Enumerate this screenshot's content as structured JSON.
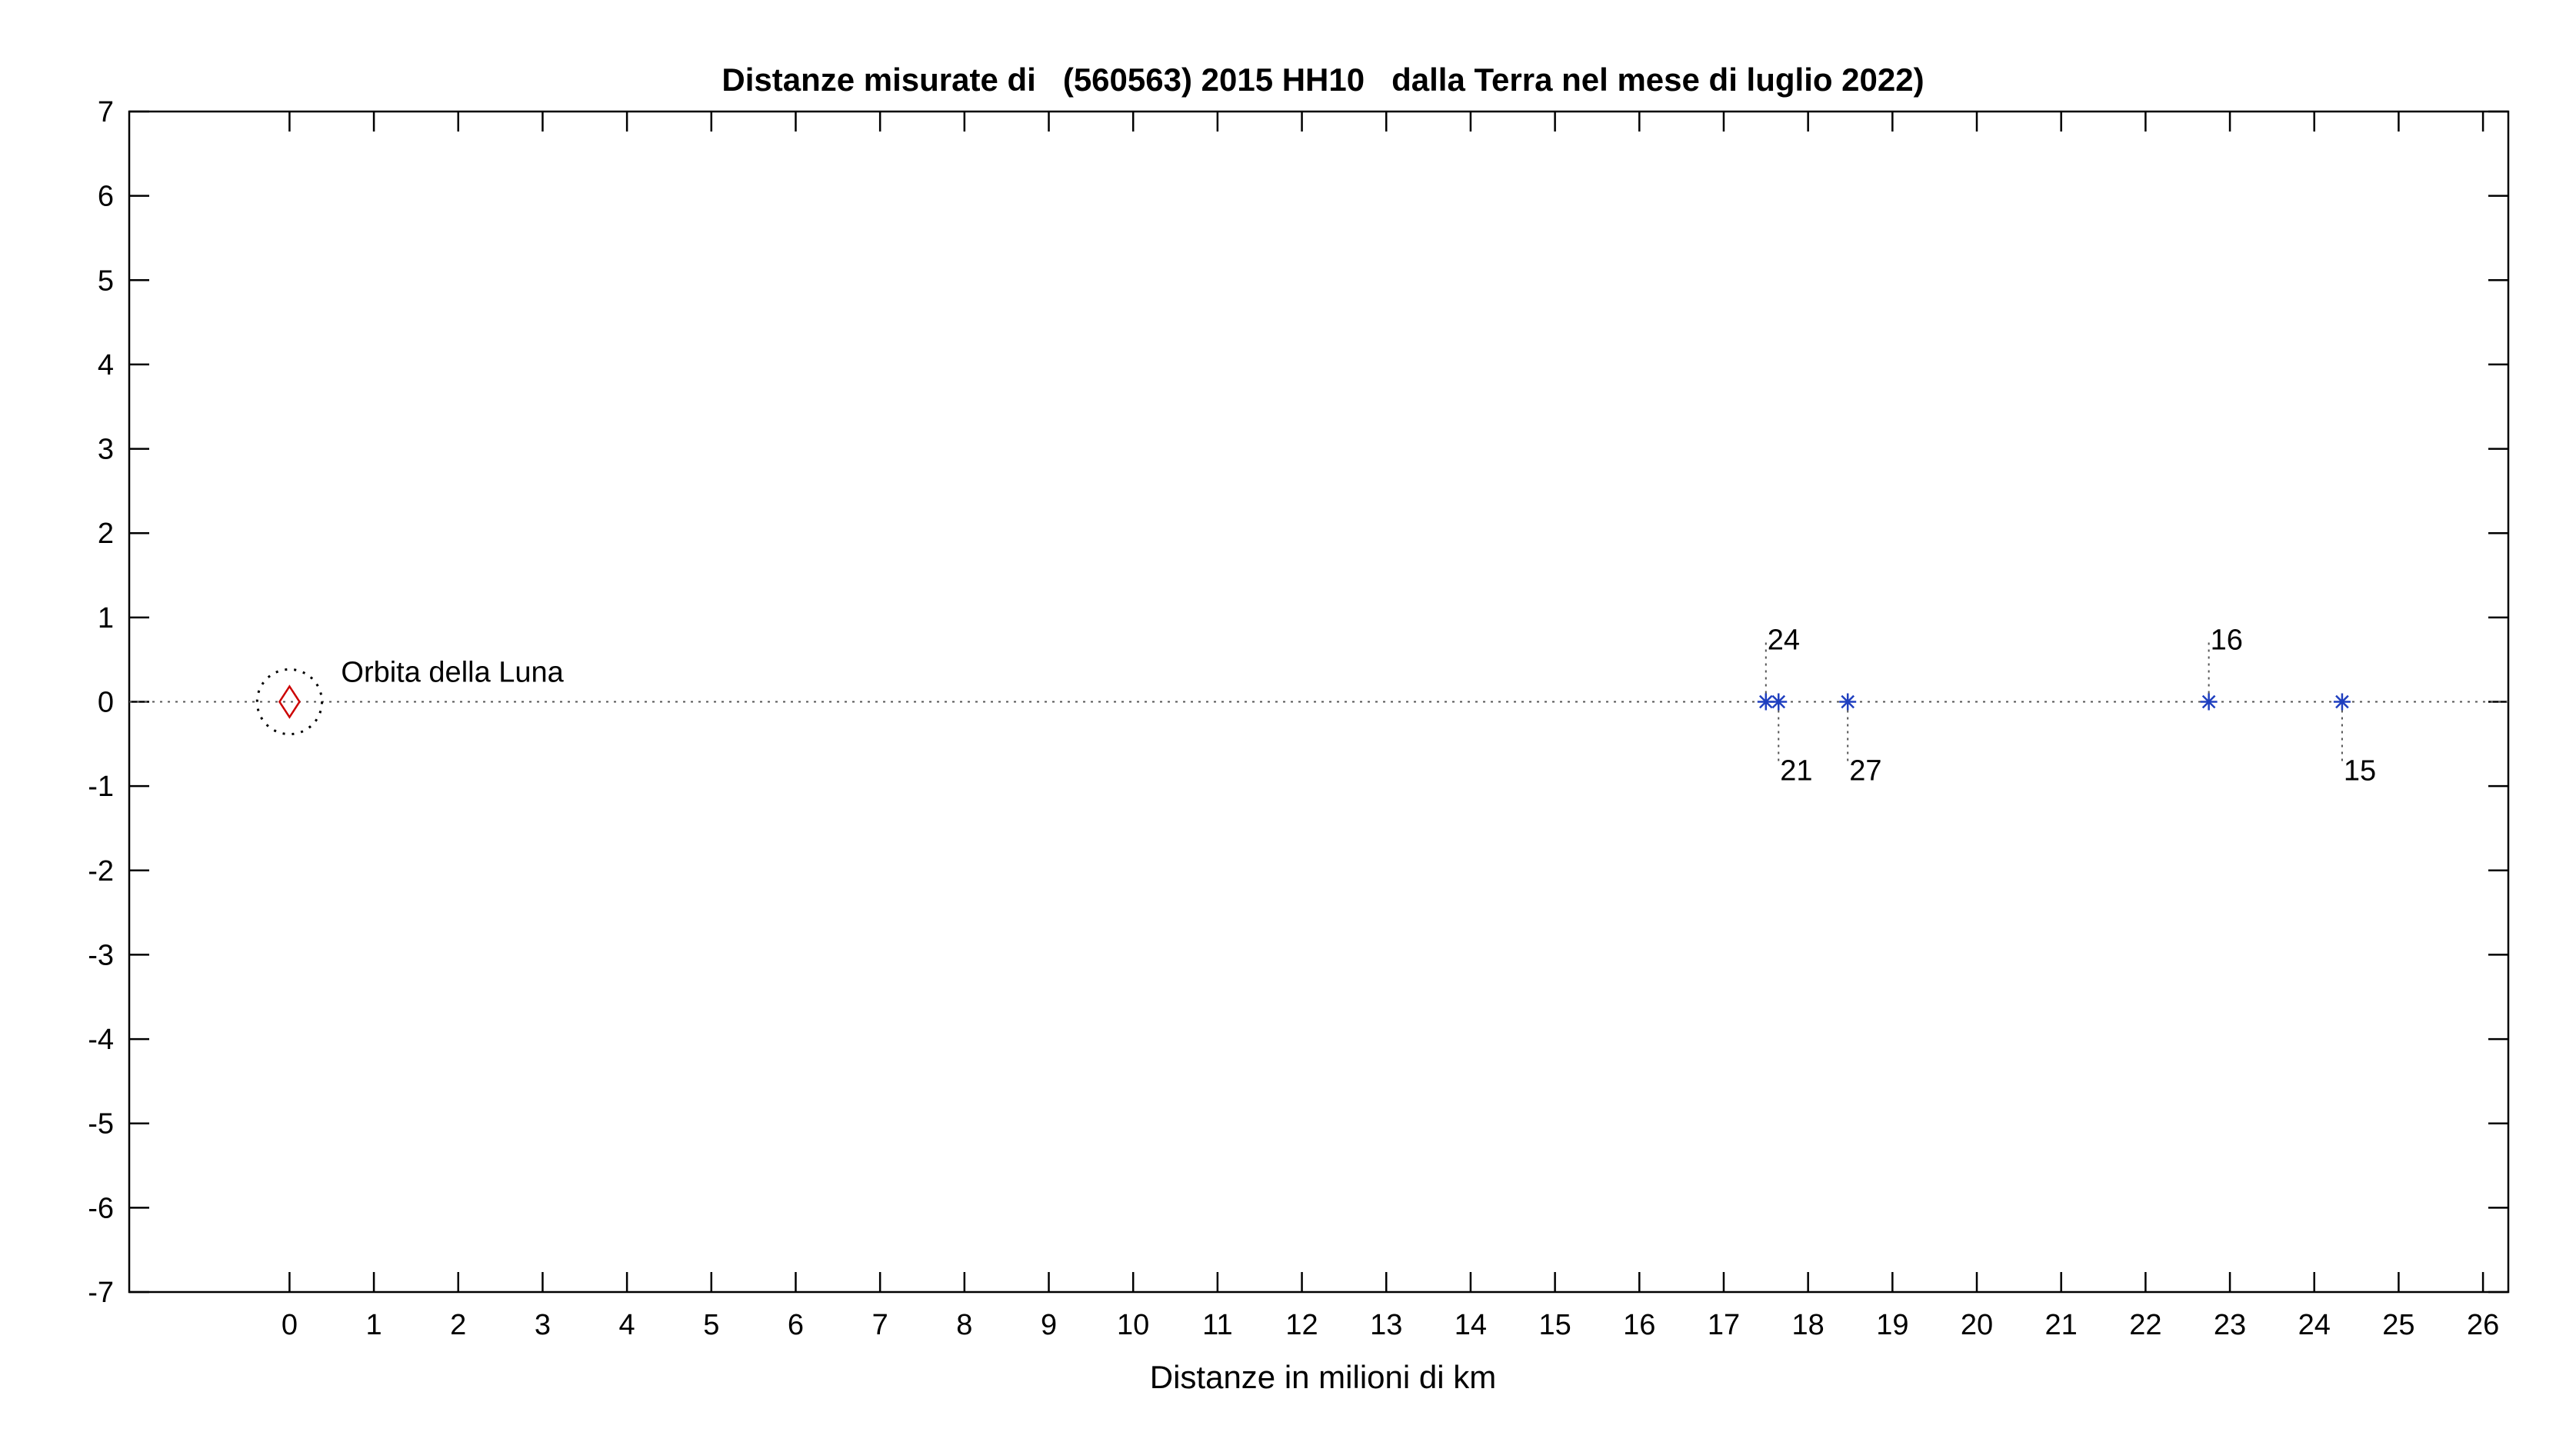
{
  "chart_data": {
    "type": "scatter",
    "title": "Distanze misurate di   (560563) 2015 HH10   dalla Terra nel mese di luglio 2022)",
    "xlabel": "Distanze in milioni di km",
    "ylabel": "",
    "xlim": [
      -1.9,
      26.3
    ],
    "ylim": [
      -7,
      7
    ],
    "x_ticks": [
      0,
      1,
      2,
      3,
      4,
      5,
      6,
      7,
      8,
      9,
      10,
      11,
      12,
      13,
      14,
      15,
      16,
      17,
      18,
      19,
      20,
      21,
      22,
      23,
      24,
      25,
      26
    ],
    "y_ticks": [
      7,
      6,
      5,
      4,
      3,
      2,
      1,
      0,
      -1,
      -2,
      -3,
      -4,
      -5,
      -6,
      -7
    ],
    "grid": false,
    "earth": {
      "x": 0,
      "y": 0,
      "marker": "diamond",
      "color": "#cc0000"
    },
    "moon_orbit": {
      "radius": 0.384,
      "label": "Orbita della Luna"
    },
    "series": [
      {
        "marker": "asterisk",
        "color": "#1f3fbf",
        "points": [
          {
            "x": 17.5,
            "y": 0,
            "label": "24",
            "label_side": "above"
          },
          {
            "x": 17.65,
            "y": 0,
            "label": "21",
            "label_side": "below"
          },
          {
            "x": 18.47,
            "y": 0,
            "label": "27",
            "label_side": "below"
          },
          {
            "x": 22.75,
            "y": 0,
            "label": "16",
            "label_side": "above"
          },
          {
            "x": 24.33,
            "y": 0,
            "label": "15",
            "label_side": "below"
          }
        ]
      }
    ]
  }
}
